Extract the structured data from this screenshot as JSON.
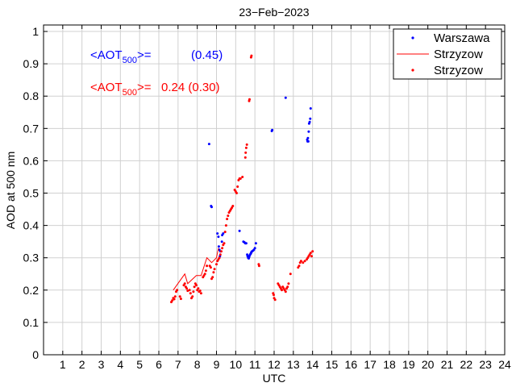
{
  "chart_data": {
    "type": "scatter",
    "title": "23−Feb−2023",
    "xlabel": "UTC",
    "ylabel": "AOD at 500 nm",
    "xlim": [
      0,
      24
    ],
    "ylim": [
      0,
      1.02
    ],
    "xticks": [
      1,
      2,
      3,
      4,
      5,
      6,
      7,
      8,
      9,
      10,
      11,
      12,
      13,
      14,
      15,
      16,
      17,
      18,
      19,
      20,
      21,
      22,
      23,
      24
    ],
    "yticks": [
      0,
      0.1,
      0.2,
      0.3,
      0.4,
      0.5,
      0.6,
      0.7,
      0.8,
      0.9,
      1
    ],
    "ytick_labels": [
      "0",
      "0.1",
      "0.2",
      "0.3",
      "0.4",
      "0.5",
      "0.6",
      "0.7",
      "0.8",
      "0.9",
      "1"
    ],
    "grid": true,
    "legend_position": "top-right",
    "annotations": [
      {
        "prefix": "<AOT",
        "sub": "500",
        "suffix": ">=",
        "value": "(0.45)",
        "color": "#0000ff"
      },
      {
        "prefix": "<AOT",
        "sub": "500",
        "suffix": ">=",
        "value": "0.24 (0.30)",
        "color": "#ff0000"
      }
    ],
    "series": [
      {
        "name": "Warszawa",
        "style": "points",
        "color": "#0000ff",
        "points": [
          [
            8.62,
            0.652
          ],
          [
            8.72,
            0.46
          ],
          [
            8.75,
            0.457
          ],
          [
            9.05,
            0.375
          ],
          [
            9.1,
            0.365
          ],
          [
            9.12,
            0.335
          ],
          [
            9.15,
            0.325
          ],
          [
            9.18,
            0.305
          ],
          [
            9.2,
            0.32
          ],
          [
            9.28,
            0.35
          ],
          [
            9.3,
            0.37
          ],
          [
            9.35,
            0.375
          ],
          [
            10.2,
            0.383
          ],
          [
            10.4,
            0.35
          ],
          [
            10.45,
            0.348
          ],
          [
            10.5,
            0.345
          ],
          [
            10.55,
            0.345
          ],
          [
            10.6,
            0.31
          ],
          [
            10.62,
            0.305
          ],
          [
            10.65,
            0.3
          ],
          [
            10.68,
            0.298
          ],
          [
            10.7,
            0.302
          ],
          [
            10.72,
            0.306
          ],
          [
            10.75,
            0.31
          ],
          [
            10.78,
            0.312
          ],
          [
            10.8,
            0.315
          ],
          [
            10.82,
            0.318
          ],
          [
            10.85,
            0.32
          ],
          [
            10.9,
            0.322
          ],
          [
            10.95,
            0.325
          ],
          [
            11.0,
            0.33
          ],
          [
            11.05,
            0.345
          ],
          [
            11.88,
            0.692
          ],
          [
            11.9,
            0.695
          ],
          [
            12.6,
            0.795
          ],
          [
            13.72,
            0.665
          ],
          [
            13.74,
            0.66
          ],
          [
            13.76,
            0.67
          ],
          [
            13.78,
            0.66
          ],
          [
            13.8,
            0.69
          ],
          [
            13.82,
            0.715
          ],
          [
            13.85,
            0.72
          ],
          [
            13.88,
            0.73
          ],
          [
            13.9,
            0.762
          ]
        ]
      },
      {
        "name": "Strzyzow",
        "style": "line",
        "color": "#ff0000",
        "points": [
          [
            6.75,
            0.2
          ],
          [
            7.35,
            0.25
          ],
          [
            7.5,
            0.22
          ],
          [
            7.95,
            0.245
          ],
          [
            8.2,
            0.245
          ],
          [
            8.5,
            0.3
          ],
          [
            8.75,
            0.285
          ],
          [
            9.0,
            0.3
          ],
          [
            9.1,
            0.33
          ]
        ]
      },
      {
        "name": "Strzyzow",
        "style": "points",
        "color": "#ff0000",
        "points": [
          [
            6.65,
            0.163
          ],
          [
            6.7,
            0.168
          ],
          [
            6.75,
            0.175
          ],
          [
            6.8,
            0.172
          ],
          [
            6.85,
            0.18
          ],
          [
            6.9,
            0.195
          ],
          [
            6.95,
            0.2
          ],
          [
            7.1,
            0.18
          ],
          [
            7.15,
            0.173
          ],
          [
            7.3,
            0.215
          ],
          [
            7.35,
            0.22
          ],
          [
            7.4,
            0.21
          ],
          [
            7.45,
            0.205
          ],
          [
            7.5,
            0.198
          ],
          [
            7.6,
            0.2
          ],
          [
            7.65,
            0.19
          ],
          [
            7.7,
            0.175
          ],
          [
            7.75,
            0.18
          ],
          [
            7.8,
            0.195
          ],
          [
            7.85,
            0.21
          ],
          [
            7.9,
            0.22
          ],
          [
            7.95,
            0.215
          ],
          [
            8.0,
            0.2
          ],
          [
            8.05,
            0.205
          ],
          [
            8.1,
            0.195
          ],
          [
            8.15,
            0.198
          ],
          [
            8.2,
            0.19
          ],
          [
            8.3,
            0.24
          ],
          [
            8.35,
            0.245
          ],
          [
            8.4,
            0.25
          ],
          [
            8.45,
            0.26
          ],
          [
            8.5,
            0.275
          ],
          [
            8.65,
            0.275
          ],
          [
            8.7,
            0.27
          ],
          [
            8.75,
            0.235
          ],
          [
            8.8,
            0.24
          ],
          [
            8.85,
            0.255
          ],
          [
            8.9,
            0.265
          ],
          [
            9.0,
            0.28
          ],
          [
            9.05,
            0.29
          ],
          [
            9.1,
            0.295
          ],
          [
            9.15,
            0.3
          ],
          [
            9.2,
            0.31
          ],
          [
            9.25,
            0.32
          ],
          [
            9.3,
            0.33
          ],
          [
            9.35,
            0.34
          ],
          [
            9.4,
            0.345
          ],
          [
            9.45,
            0.38
          ],
          [
            9.5,
            0.4
          ],
          [
            9.55,
            0.42
          ],
          [
            9.6,
            0.43
          ],
          [
            9.65,
            0.44
          ],
          [
            9.7,
            0.445
          ],
          [
            9.75,
            0.45
          ],
          [
            9.8,
            0.455
          ],
          [
            9.85,
            0.46
          ],
          [
            9.95,
            0.51
          ],
          [
            10.0,
            0.505
          ],
          [
            10.05,
            0.5
          ],
          [
            10.1,
            0.52
          ],
          [
            10.15,
            0.54
          ],
          [
            10.2,
            0.545
          ],
          [
            10.25,
            0.545
          ],
          [
            10.35,
            0.55
          ],
          [
            10.5,
            0.61
          ],
          [
            10.52,
            0.625
          ],
          [
            10.55,
            0.64
          ],
          [
            10.58,
            0.65
          ],
          [
            10.7,
            0.785
          ],
          [
            10.72,
            0.79
          ],
          [
            10.8,
            0.92
          ],
          [
            10.82,
            0.925
          ],
          [
            11.2,
            0.28
          ],
          [
            11.22,
            0.275
          ],
          [
            11.95,
            0.19
          ],
          [
            11.98,
            0.185
          ],
          [
            12.0,
            0.175
          ],
          [
            12.05,
            0.17
          ],
          [
            12.2,
            0.22
          ],
          [
            12.25,
            0.215
          ],
          [
            12.3,
            0.21
          ],
          [
            12.35,
            0.205
          ],
          [
            12.4,
            0.2
          ],
          [
            12.45,
            0.21
          ],
          [
            12.5,
            0.205
          ],
          [
            12.55,
            0.2
          ],
          [
            12.6,
            0.195
          ],
          [
            12.65,
            0.205
          ],
          [
            12.7,
            0.21
          ],
          [
            12.75,
            0.22
          ],
          [
            12.85,
            0.25
          ],
          [
            13.25,
            0.27
          ],
          [
            13.3,
            0.275
          ],
          [
            13.35,
            0.285
          ],
          [
            13.4,
            0.29
          ],
          [
            13.5,
            0.285
          ],
          [
            13.6,
            0.29
          ],
          [
            13.7,
            0.295
          ],
          [
            13.75,
            0.3
          ],
          [
            13.8,
            0.305
          ],
          [
            13.85,
            0.31
          ],
          [
            13.9,
            0.315
          ],
          [
            13.95,
            0.305
          ],
          [
            14.0,
            0.32
          ]
        ]
      }
    ]
  }
}
